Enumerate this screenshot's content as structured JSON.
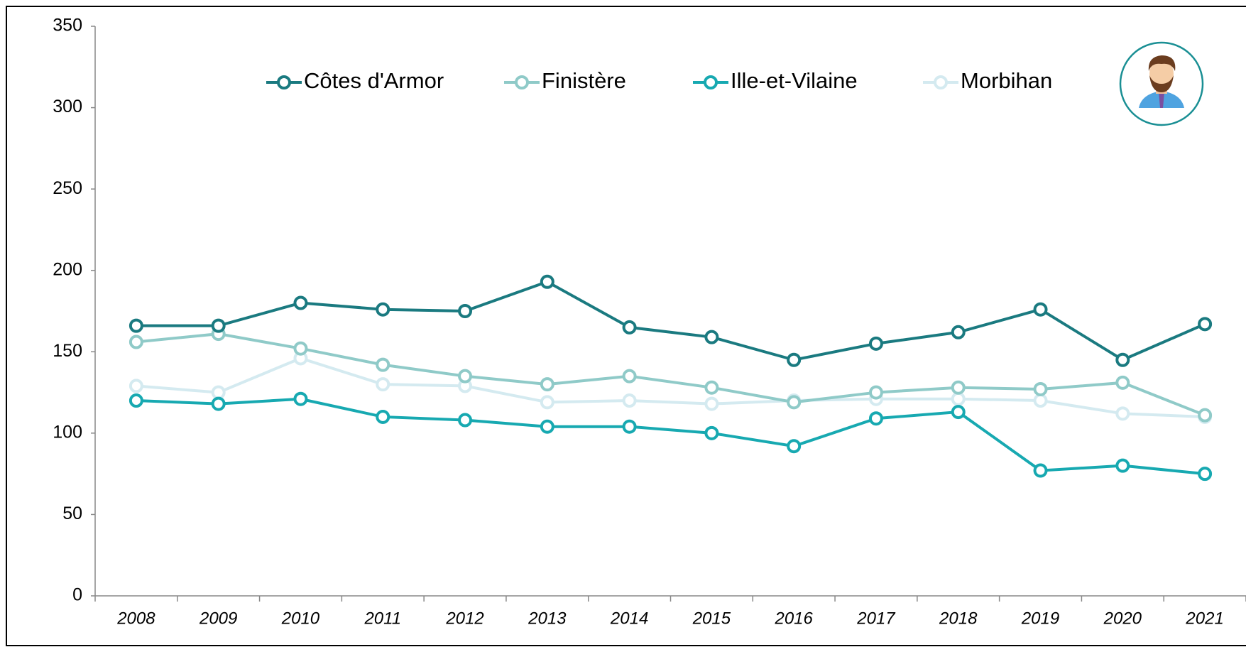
{
  "chart_data": {
    "type": "line",
    "categories": [
      "2008",
      "2009",
      "2010",
      "2011",
      "2012",
      "2013",
      "2014",
      "2015",
      "2016",
      "2017",
      "2018",
      "2019",
      "2020",
      "2021"
    ],
    "series": [
      {
        "name": "Côtes d'Armor",
        "color": "#1a7a80",
        "values": [
          166,
          166,
          180,
          176,
          175,
          193,
          165,
          159,
          145,
          155,
          162,
          176,
          145,
          167
        ]
      },
      {
        "name": "Finistère",
        "color": "#8fcac8",
        "values": [
          156,
          161,
          152,
          142,
          135,
          130,
          135,
          128,
          119,
          125,
          128,
          127,
          131,
          111
        ]
      },
      {
        "name": "Ille-et-Vilaine",
        "color": "#17a9b1",
        "values": [
          120,
          118,
          121,
          110,
          108,
          104,
          104,
          100,
          92,
          109,
          113,
          77,
          80,
          75
        ]
      },
      {
        "name": "Morbihan",
        "color": "#d4eaf0",
        "values": [
          129,
          125,
          146,
          130,
          129,
          119,
          120,
          118,
          120,
          121,
          121,
          120,
          112,
          110
        ]
      }
    ],
    "ylim": [
      0,
      350
    ],
    "yticks": [
      0,
      50,
      100,
      150,
      200,
      250,
      300,
      350
    ],
    "grid": false,
    "legend": "top"
  }
}
